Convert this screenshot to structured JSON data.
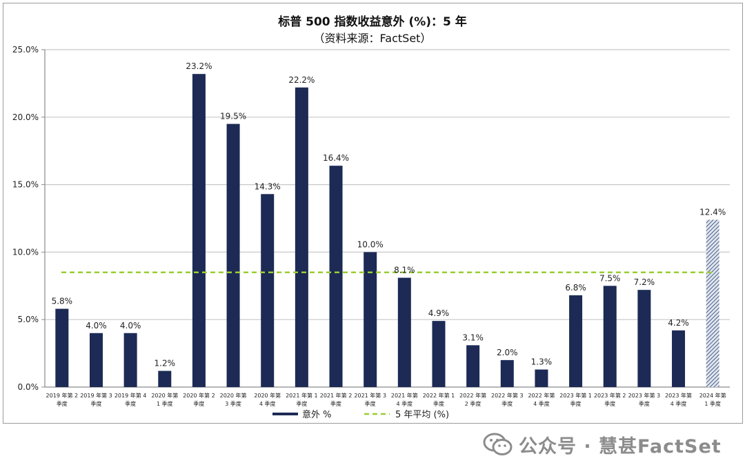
{
  "chart_data": {
    "type": "bar",
    "title": "标普 500 指数收益意外 (%)：5 年",
    "subtitle": "（资料来源：FactSet）",
    "categories": [
      [
        "2019 年第 2",
        "季度"
      ],
      [
        "2019 年第 3",
        "季度"
      ],
      [
        "2019 年第 4",
        "季度"
      ],
      [
        "2020 年第",
        "1 季度"
      ],
      [
        "2020 年第 2",
        "季度"
      ],
      [
        "2020 年第",
        "3 季度"
      ],
      [
        "2020 年第",
        "4 季度"
      ],
      [
        "2021 年第 1",
        "季度"
      ],
      [
        "2021 年第 2",
        "季度"
      ],
      [
        "2021 年第 3",
        "季度"
      ],
      [
        "2021 年第",
        "4 季度"
      ],
      [
        "2022 年第 1",
        "季度"
      ],
      [
        "2022 年第",
        "2 季度"
      ],
      [
        "2022 年第 3",
        "季度"
      ],
      [
        "2022 年第",
        "4 季度"
      ],
      [
        "2023 年第 1",
        "季度"
      ],
      [
        "2023 年第 2",
        "季度"
      ],
      [
        "2023 年第 3",
        "季度"
      ],
      [
        "2023 年第",
        "4 季度"
      ],
      [
        "2024 年第",
        "1 季度"
      ]
    ],
    "series": [
      {
        "name": "意外 %",
        "values": [
          5.8,
          4.0,
          4.0,
          1.2,
          23.2,
          19.5,
          14.3,
          22.2,
          16.4,
          10.0,
          8.1,
          4.9,
          3.1,
          2.0,
          1.3,
          6.8,
          7.5,
          7.2,
          4.2,
          12.4
        ],
        "labels": [
          "5.8%",
          "4.0%",
          "4.0%",
          "1.2%",
          "23.2%",
          "19.5%",
          "14.3%",
          "22.2%",
          "16.4%",
          "10.0%",
          "8.1%",
          "4.9%",
          "3.1%",
          "2.0%",
          "1.3%",
          "6.8%",
          "7.5%",
          "7.2%",
          "4.2%",
          "12.4%"
        ],
        "color": "#1c2a55",
        "highlight_last": {
          "pattern": "diagonal-hatch",
          "color": "#8a9bb5"
        }
      }
    ],
    "reference_line": {
      "name": "5 年平均 (%)",
      "value": 8.5,
      "color": "#9acd32",
      "style": "dashed"
    },
    "yticks": [
      "0.0%",
      "5.0%",
      "10.0%",
      "15.0%",
      "20.0%",
      "25.0%"
    ],
    "ylim": [
      0,
      25
    ],
    "grid": true,
    "legend_position": "bottom-center"
  },
  "watermark": {
    "text": "公众号 · 慧甚FactSet",
    "icon": "wechat-icon"
  }
}
